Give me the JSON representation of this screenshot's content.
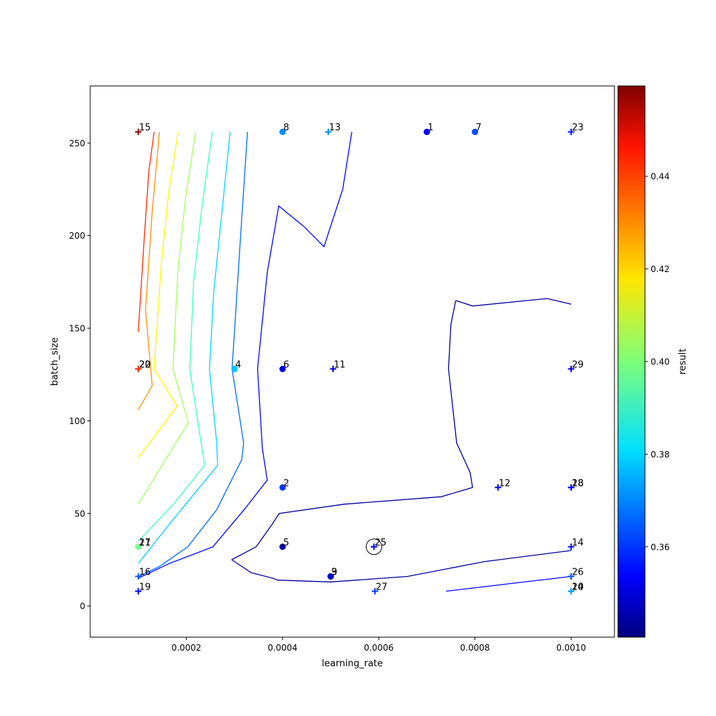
{
  "chart_data": {
    "type": "scatter",
    "xlabel": "learning_rate",
    "ylabel": "batch_size",
    "colorbar_label": "result",
    "xlim": [
      0.0,
      0.00109
    ],
    "ylim": [
      -16.8,
      280.8
    ],
    "x_ticks": [
      {
        "value": 0.0002,
        "label": "0.0002"
      },
      {
        "value": 0.0004,
        "label": "0.0004"
      },
      {
        "value": 0.0006,
        "label": "0.0006"
      },
      {
        "value": 0.0008,
        "label": "0.0008"
      },
      {
        "value": 0.001,
        "label": "0.0010"
      }
    ],
    "y_ticks": [
      {
        "value": 0,
        "label": "0"
      },
      {
        "value": 50,
        "label": "50"
      },
      {
        "value": 100,
        "label": "100"
      },
      {
        "value": 150,
        "label": "150"
      },
      {
        "value": 200,
        "label": "200"
      },
      {
        "value": 250,
        "label": "250"
      }
    ],
    "colorbar": {
      "colormap": "jet",
      "range": [
        0.3405,
        0.4595
      ],
      "ticks": [
        {
          "value": 0.36,
          "label": "0.36"
        },
        {
          "value": 0.38,
          "label": "0.38"
        },
        {
          "value": 0.4,
          "label": "0.40"
        },
        {
          "value": 0.42,
          "label": "0.42"
        },
        {
          "value": 0.44,
          "label": "0.44"
        }
      ]
    },
    "grid": false,
    "points": [
      {
        "label": "1",
        "x": 0.0007,
        "y": 256,
        "result": 0.355,
        "marker": "circle"
      },
      {
        "label": "2",
        "x": 0.0004,
        "y": 64,
        "result": 0.362,
        "marker": "circle"
      },
      {
        "label": "3",
        "x": 0.0005,
        "y": 16,
        "result": 0.349,
        "marker": "circle"
      },
      {
        "label": "4",
        "x": 0.0003,
        "y": 128,
        "result": 0.378,
        "marker": "circle"
      },
      {
        "label": "5",
        "x": 0.0004,
        "y": 32,
        "result": 0.344,
        "marker": "circle"
      },
      {
        "label": "6",
        "x": 0.0004,
        "y": 128,
        "result": 0.352,
        "marker": "circle"
      },
      {
        "label": "7",
        "x": 0.0008,
        "y": 256,
        "result": 0.364,
        "marker": "circle"
      },
      {
        "label": "8",
        "x": 0.0004,
        "y": 256,
        "result": 0.372,
        "marker": "circle"
      },
      {
        "label": "9",
        "x": 0.0005,
        "y": 16,
        "result": 0.35,
        "marker": "circle"
      },
      {
        "label": "10",
        "x": 0.001,
        "y": 8,
        "result": 0.372,
        "marker": "plus"
      },
      {
        "label": "11",
        "x": 0.000505,
        "y": 128,
        "result": 0.35,
        "marker": "plus"
      },
      {
        "label": "12",
        "x": 0.000848,
        "y": 64,
        "result": 0.352,
        "marker": "plus"
      },
      {
        "label": "13",
        "x": 0.000495,
        "y": 256,
        "result": 0.372,
        "marker": "plus"
      },
      {
        "label": "14",
        "x": 0.001,
        "y": 32,
        "result": 0.357,
        "marker": "plus"
      },
      {
        "label": "15",
        "x": 0.0001,
        "y": 256,
        "result": 0.458,
        "marker": "plus"
      },
      {
        "label": "16",
        "x": 0.0001,
        "y": 16,
        "result": 0.366,
        "marker": "plus"
      },
      {
        "label": "17",
        "x": 0.0001,
        "y": 32,
        "result": 0.4,
        "marker": "circle"
      },
      {
        "label": "18",
        "x": 0.001,
        "y": 64,
        "result": 0.354,
        "marker": "plus"
      },
      {
        "label": "19",
        "x": 0.0001,
        "y": 8,
        "result": 0.356,
        "marker": "plus"
      },
      {
        "label": "20",
        "x": 0.0001,
        "y": 128,
        "result": 0.438,
        "marker": "plus"
      },
      {
        "label": "21",
        "x": 0.0001,
        "y": 32,
        "result": 0.398,
        "marker": "plus"
      },
      {
        "label": "22",
        "x": 0.0001,
        "y": 128,
        "result": 0.44,
        "marker": "plus"
      },
      {
        "label": "23",
        "x": 0.001,
        "y": 256,
        "result": 0.358,
        "marker": "plus"
      },
      {
        "label": "24",
        "x": 0.001,
        "y": 8,
        "result": 0.374,
        "marker": "plus"
      },
      {
        "label": "25",
        "x": 0.00059,
        "y": 32,
        "result": 0.352,
        "marker": "plus",
        "best": true
      },
      {
        "label": "26",
        "x": 0.001,
        "y": 16,
        "result": 0.364,
        "marker": "plus"
      },
      {
        "label": "27",
        "x": 0.000592,
        "y": 8,
        "result": 0.362,
        "marker": "plus"
      },
      {
        "label": "28",
        "x": 0.001,
        "y": 64,
        "result": 0.353,
        "marker": "plus"
      },
      {
        "label": "29",
        "x": 0.001,
        "y": 128,
        "result": 0.352,
        "marker": "plus"
      }
    ],
    "contours": [
      {
        "level": 0.344,
        "polylines": [
          [
            [
              0.00076,
              165
            ],
            [
              0.000795,
              162
            ],
            [
              0.00095,
              166
            ],
            [
              0.001,
              163
            ]
          ],
          [
            [
              0.000294,
              25
            ],
            [
              0.000335,
              18
            ],
            [
              0.00038,
              15
            ],
            [
              0.00039,
              14
            ],
            [
              0.0005,
              13
            ],
            [
              0.00066,
              16
            ],
            [
              0.00082,
              24
            ],
            [
              0.001,
              30
            ]
          ],
          [
            [
              0.000294,
              25
            ],
            [
              0.000345,
              32
            ],
            [
              0.000378,
              44
            ],
            [
              0.000393,
              50
            ],
            [
              0.000528,
              55
            ],
            [
              0.00073,
              59
            ],
            [
              0.000795,
              64
            ],
            [
              0.00079,
              72
            ],
            [
              0.000762,
              88
            ],
            [
              0.000745,
              128
            ],
            [
              0.00075,
              152
            ],
            [
              0.00076,
              165
            ]
          ]
        ]
      },
      {
        "level": 0.356,
        "polylines": [
          [
            [
              0.0001,
              15
            ],
            [
              0.000165,
              23
            ],
            [
              0.000255,
              32
            ],
            [
              0.00032,
              52
            ],
            [
              0.000368,
              68
            ],
            [
              0.000358,
              85
            ],
            [
              0.000348,
              128
            ],
            [
              0.000368,
              180
            ],
            [
              0.000392,
              216
            ],
            [
              0.000444,
              205
            ],
            [
              0.000486,
              194
            ],
            [
              0.000525,
              225
            ],
            [
              0.000544,
              256
            ]
          ],
          [
            [
              0.00074,
              8
            ],
            [
              0.00087,
              12
            ],
            [
              0.001,
              16
            ]
          ]
        ]
      },
      {
        "level": 0.368,
        "polylines": [
          [
            [
              0.0001,
              16
            ],
            [
              0.000142,
              21
            ],
            [
              0.000203,
              32
            ],
            [
              0.000263,
              52
            ],
            [
              0.000315,
              79
            ],
            [
              0.000319,
              88
            ],
            [
              0.000295,
              128
            ],
            [
              0.000314,
              205
            ],
            [
              0.000327,
              256
            ]
          ]
        ]
      },
      {
        "level": 0.38,
        "polylines": [
          [
            [
              0.0001,
              23
            ],
            [
              0.000167,
              45
            ],
            [
              0.000265,
              76
            ],
            [
              0.000263,
              88
            ],
            [
              0.000248,
              128
            ],
            [
              0.000257,
              170
            ],
            [
              0.000272,
              208
            ],
            [
              0.000291,
              256
            ]
          ]
        ]
      },
      {
        "level": 0.392,
        "polylines": [
          [
            [
              0.0001,
              35
            ],
            [
              0.000173,
              55
            ],
            [
              0.000238,
              76
            ],
            [
              0.000224,
              99
            ],
            [
              0.000207,
              128
            ],
            [
              0.000215,
              175
            ],
            [
              0.000232,
              215
            ],
            [
              0.000254,
              256
            ]
          ]
        ]
      },
      {
        "level": 0.404,
        "polylines": [
          [
            [
              0.0001,
              55
            ],
            [
              0.000204,
              99
            ],
            [
              0.000172,
              128
            ],
            [
              0.000182,
              180
            ],
            [
              0.000198,
              220
            ],
            [
              0.000219,
              256
            ]
          ]
        ]
      },
      {
        "level": 0.416,
        "polylines": [
          [
            [
              0.0001,
              80
            ],
            [
              0.000181,
              108
            ],
            [
              0.000133,
              128
            ],
            [
              0.000148,
              185
            ],
            [
              0.000164,
              225
            ],
            [
              0.000183,
              256
            ]
          ]
        ]
      },
      {
        "level": 0.428,
        "polylines": [
          [
            [
              0.0001,
              106
            ],
            [
              0.000129,
              119
            ],
            [
              0.000115,
              160
            ],
            [
              0.000129,
              213
            ],
            [
              0.000144,
              256
            ]
          ]
        ]
      },
      {
        "level": 0.44,
        "polylines": [
          [
            [
              0.0001,
              148
            ],
            [
              0.000112,
              197
            ],
            [
              0.000122,
              235
            ],
            [
              0.000133,
              256
            ]
          ]
        ]
      },
      {
        "level": 0.452,
        "polylines": []
      }
    ]
  }
}
